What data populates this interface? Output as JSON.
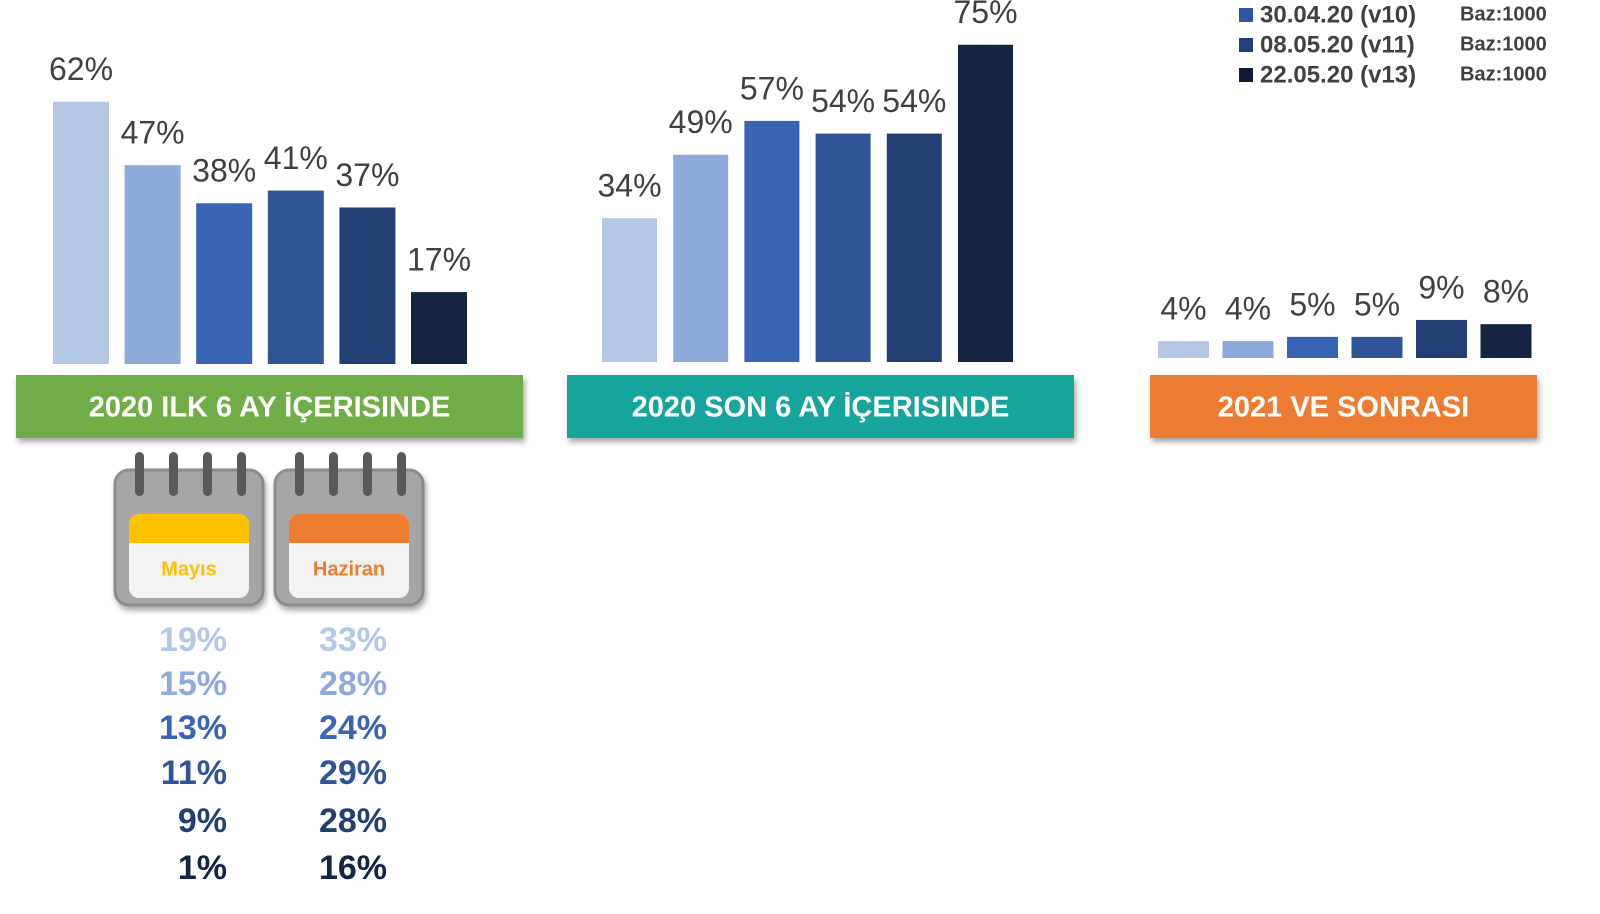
{
  "chart_data": [
    {
      "type": "bar",
      "title": "2020 ILK 6 AY İÇERISINDE",
      "banner_color": "#70ad47",
      "values": [
        62,
        47,
        38,
        41,
        37,
        17
      ],
      "value_labels": [
        "62%",
        "47%",
        "38%",
        "41%",
        "37%",
        "17%"
      ],
      "colors": [
        "#b4c7e7",
        "#8eaadb",
        "#3864b4",
        "#2f5597",
        "#213f72",
        "#142441"
      ]
    },
    {
      "type": "bar",
      "title": "2020 SON 6 AY İÇERISINDE",
      "banner_color": "#15a59a",
      "values": [
        34,
        49,
        57,
        54,
        54,
        75
      ],
      "value_labels": [
        "34%",
        "49%",
        "57%",
        "54%",
        "54%",
        "75%"
      ],
      "colors": [
        "#b4c7e7",
        "#8eaadb",
        "#3864b4",
        "#2f5597",
        "#213f72",
        "#142441"
      ]
    },
    {
      "type": "bar",
      "title": "2021 VE SONRASI",
      "banner_color": "#ed7d31",
      "values": [
        4,
        4,
        5,
        5,
        9,
        8
      ],
      "value_labels": [
        "4%",
        "4%",
        "5%",
        "5%",
        "9%",
        "8%"
      ],
      "colors": [
        "#b4c7e7",
        "#8eaadb",
        "#3864b4",
        "#2f5597",
        "#213f72",
        "#142441"
      ]
    }
  ],
  "legend": [
    {
      "name": "30.04.20 (v10)",
      "color": "#2f55a0",
      "base": "Baz:1000"
    },
    {
      "name": "08.05.20 (v11)",
      "color": "#23407a",
      "base": "Baz:1000"
    },
    {
      "name": "22.05.20 (v13)",
      "color": "#111d36",
      "base": "Baz:1000"
    }
  ],
  "months": [
    {
      "label": "Mayıs",
      "color": "#ffc000",
      "values": [
        19,
        15,
        13,
        11,
        9,
        1
      ],
      "value_labels": [
        "19%",
        "15%",
        "13%",
        "11%",
        "9%",
        "1%"
      ]
    },
    {
      "label": "Haziran",
      "color": "#ed7d31",
      "values": [
        33,
        28,
        24,
        29,
        28,
        16
      ],
      "value_labels": [
        "33%",
        "28%",
        "24%",
        "29%",
        "28%",
        "16%"
      ]
    }
  ]
}
